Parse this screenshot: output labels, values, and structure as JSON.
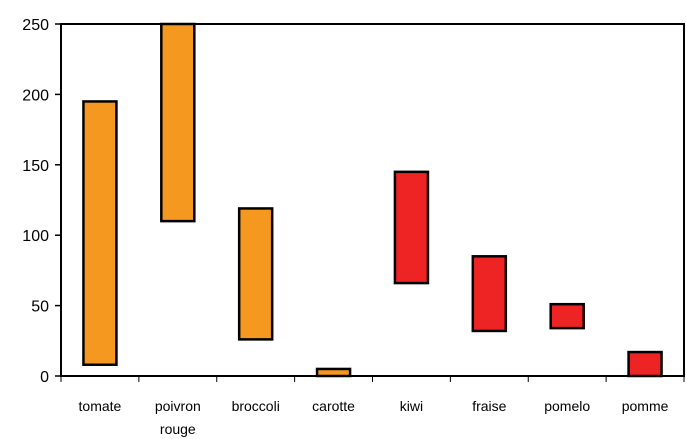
{
  "chart_data": {
    "type": "bar",
    "subtype": "floating-range",
    "categories": [
      "tomate",
      "poivron rouge",
      "broccoli",
      "carotte",
      "kiwi",
      "fraise",
      "pomelo",
      "pomme"
    ],
    "category_lines": [
      [
        "tomate"
      ],
      [
        "poivron",
        "rouge"
      ],
      [
        "broccoli"
      ],
      [
        "carotte"
      ],
      [
        "kiwi"
      ],
      [
        "fraise"
      ],
      [
        "pomelo"
      ],
      [
        "pomme"
      ]
    ],
    "series": [
      {
        "values": [
          [
            8,
            195
          ],
          [
            110,
            250
          ],
          [
            26,
            119
          ],
          [
            0,
            5
          ],
          null,
          null,
          null,
          null
        ],
        "color": "#F5981F"
      },
      {
        "values": [
          null,
          null,
          null,
          null,
          [
            66,
            145
          ],
          [
            32,
            85
          ],
          [
            34,
            51
          ],
          [
            0,
            17
          ]
        ],
        "color": "#EE2424"
      }
    ],
    "ylim": [
      0,
      250
    ],
    "yticks": [
      0,
      50,
      100,
      150,
      200,
      250
    ],
    "title": "",
    "xlabel": "",
    "ylabel": "",
    "grid": false,
    "legend": "none"
  }
}
